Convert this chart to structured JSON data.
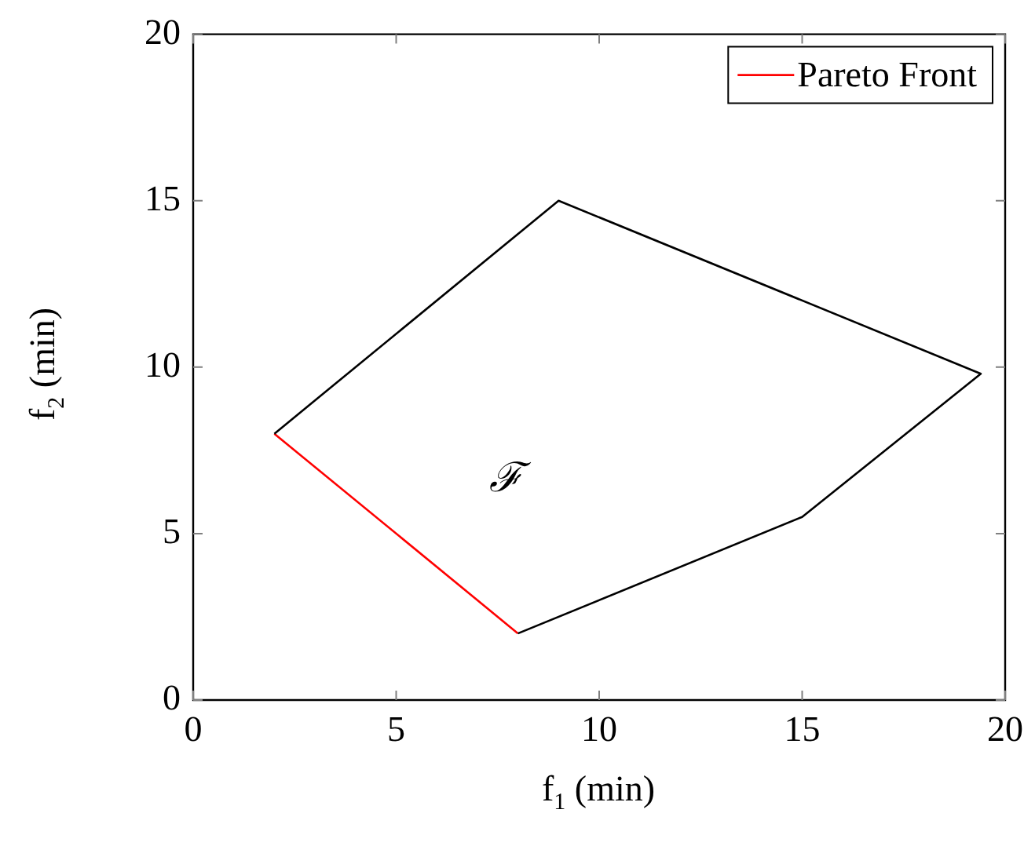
{
  "chart_data": {
    "type": "line",
    "xlabel": "f$_{1}$ (min)",
    "ylabel": "f$_{2}$ (min)",
    "series": [
      {
        "color": "#000000",
        "x": [
          2,
          9,
          19.4,
          15,
          8
        ],
        "values": [
          8,
          15,
          9.8,
          5.5,
          2
        ]
      },
      {
        "name": "Pareto Front",
        "color": "#ff0000",
        "x": [
          2,
          8
        ],
        "values": [
          8,
          2
        ]
      }
    ],
    "xlim": [
      0,
      20
    ],
    "ylim": [
      0,
      20
    ],
    "xticks": [
      0,
      5,
      10,
      15,
      20
    ],
    "yticks": [
      0,
      5,
      10,
      15,
      20
    ],
    "annotations": [
      "ℱ"
    ],
    "grid": false,
    "legend": "top right",
    "marker": "none",
    "line_style": "solid"
  }
}
